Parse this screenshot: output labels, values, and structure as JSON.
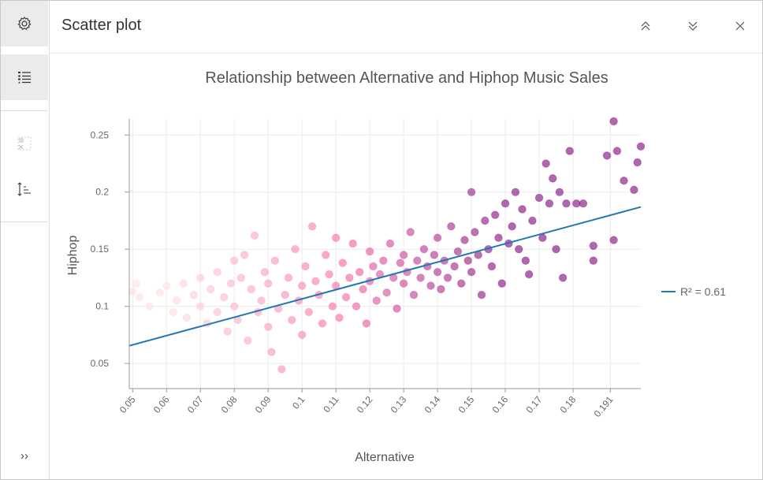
{
  "panel": {
    "title": "Scatter plot"
  },
  "sidebar": {
    "items": [
      {
        "icon": "gear-icon",
        "label": "Settings"
      },
      {
        "icon": "legend-list-icon",
        "label": "Legend"
      },
      {
        "icon": "selection-icon",
        "label": "Selection"
      },
      {
        "icon": "sort-icon",
        "label": "Sort"
      },
      {
        "icon": "expand-icon",
        "label": "Expand"
      }
    ]
  },
  "header": {
    "buttons": [
      "chevrons-up-icon",
      "chevrons-down-icon",
      "close-icon"
    ]
  },
  "chart_data": {
    "type": "scatter",
    "title": "Relationship between Alternative and Hiphop Music Sales",
    "xlabel": "Alternative",
    "ylabel": "Hiphop",
    "xlim": [
      0.049,
      0.2
    ],
    "ylim": [
      0.028,
      0.264
    ],
    "xticks": [
      0.05,
      0.06,
      0.07,
      0.08,
      0.09,
      0.1,
      0.11,
      0.12,
      0.13,
      0.14,
      0.15,
      0.16,
      0.17,
      0.18,
      0.191
    ],
    "xtick_labels": [
      "0.05",
      "0.06",
      "0.07",
      "0.08",
      "0.09",
      "0.1",
      "0.11",
      "0.12",
      "0.13",
      "0.14",
      "0.15",
      "0.16",
      "0.17",
      "0.18",
      "0.191"
    ],
    "yticks": [
      0.05,
      0.1,
      0.15,
      0.2,
      0.25
    ],
    "ytick_labels": [
      "0.05",
      "0.1",
      "0.15",
      "0.2",
      "0.25"
    ],
    "grid": true,
    "color_ramp": [
      "#fde0dd",
      "#f768a1",
      "#7a0177"
    ],
    "trendline": {
      "x": [
        0.049,
        0.2
      ],
      "y": [
        0.0655,
        0.187
      ],
      "color": "#1f77b4",
      "legend": "R² = 0.61"
    },
    "legend_placement": "right",
    "points": [
      [
        0.05,
        0.113
      ],
      [
        0.051,
        0.12
      ],
      [
        0.052,
        0.108
      ],
      [
        0.055,
        0.1
      ],
      [
        0.058,
        0.112
      ],
      [
        0.06,
        0.118
      ],
      [
        0.062,
        0.095
      ],
      [
        0.063,
        0.105
      ],
      [
        0.065,
        0.12
      ],
      [
        0.066,
        0.09
      ],
      [
        0.068,
        0.11
      ],
      [
        0.07,
        0.125
      ],
      [
        0.07,
        0.1
      ],
      [
        0.072,
        0.085
      ],
      [
        0.073,
        0.115
      ],
      [
        0.075,
        0.13
      ],
      [
        0.075,
        0.095
      ],
      [
        0.077,
        0.108
      ],
      [
        0.078,
        0.078
      ],
      [
        0.079,
        0.12
      ],
      [
        0.08,
        0.14
      ],
      [
        0.08,
        0.1
      ],
      [
        0.081,
        0.088
      ],
      [
        0.082,
        0.125
      ],
      [
        0.083,
        0.145
      ],
      [
        0.084,
        0.07
      ],
      [
        0.085,
        0.115
      ],
      [
        0.086,
        0.162
      ],
      [
        0.087,
        0.095
      ],
      [
        0.088,
        0.105
      ],
      [
        0.089,
        0.13
      ],
      [
        0.09,
        0.082
      ],
      [
        0.09,
        0.12
      ],
      [
        0.091,
        0.06
      ],
      [
        0.092,
        0.14
      ],
      [
        0.093,
        0.098
      ],
      [
        0.094,
        0.045
      ],
      [
        0.095,
        0.11
      ],
      [
        0.096,
        0.125
      ],
      [
        0.097,
        0.088
      ],
      [
        0.098,
        0.15
      ],
      [
        0.099,
        0.105
      ],
      [
        0.1,
        0.118
      ],
      [
        0.1,
        0.075
      ],
      [
        0.101,
        0.135
      ],
      [
        0.102,
        0.095
      ],
      [
        0.103,
        0.17
      ],
      [
        0.104,
        0.122
      ],
      [
        0.105,
        0.11
      ],
      [
        0.106,
        0.085
      ],
      [
        0.107,
        0.145
      ],
      [
        0.108,
        0.128
      ],
      [
        0.109,
        0.1
      ],
      [
        0.11,
        0.16
      ],
      [
        0.11,
        0.118
      ],
      [
        0.111,
        0.09
      ],
      [
        0.112,
        0.138
      ],
      [
        0.113,
        0.108
      ],
      [
        0.114,
        0.125
      ],
      [
        0.115,
        0.155
      ],
      [
        0.116,
        0.1
      ],
      [
        0.117,
        0.13
      ],
      [
        0.118,
        0.115
      ],
      [
        0.119,
        0.085
      ],
      [
        0.12,
        0.148
      ],
      [
        0.12,
        0.122
      ],
      [
        0.121,
        0.135
      ],
      [
        0.122,
        0.105
      ],
      [
        0.123,
        0.128
      ],
      [
        0.124,
        0.14
      ],
      [
        0.125,
        0.112
      ],
      [
        0.126,
        0.155
      ],
      [
        0.127,
        0.125
      ],
      [
        0.128,
        0.098
      ],
      [
        0.129,
        0.138
      ],
      [
        0.13,
        0.145
      ],
      [
        0.13,
        0.12
      ],
      [
        0.131,
        0.13
      ],
      [
        0.132,
        0.165
      ],
      [
        0.133,
        0.11
      ],
      [
        0.134,
        0.14
      ],
      [
        0.135,
        0.125
      ],
      [
        0.136,
        0.15
      ],
      [
        0.137,
        0.135
      ],
      [
        0.138,
        0.118
      ],
      [
        0.139,
        0.145
      ],
      [
        0.14,
        0.13
      ],
      [
        0.14,
        0.16
      ],
      [
        0.141,
        0.115
      ],
      [
        0.142,
        0.14
      ],
      [
        0.143,
        0.125
      ],
      [
        0.144,
        0.17
      ],
      [
        0.145,
        0.135
      ],
      [
        0.146,
        0.148
      ],
      [
        0.147,
        0.12
      ],
      [
        0.148,
        0.158
      ],
      [
        0.149,
        0.14
      ],
      [
        0.15,
        0.2
      ],
      [
        0.15,
        0.13
      ],
      [
        0.151,
        0.165
      ],
      [
        0.152,
        0.145
      ],
      [
        0.153,
        0.11
      ],
      [
        0.154,
        0.175
      ],
      [
        0.155,
        0.15
      ],
      [
        0.156,
        0.135
      ],
      [
        0.157,
        0.18
      ],
      [
        0.158,
        0.16
      ],
      [
        0.159,
        0.12
      ],
      [
        0.16,
        0.19
      ],
      [
        0.161,
        0.155
      ],
      [
        0.162,
        0.17
      ],
      [
        0.163,
        0.2
      ],
      [
        0.164,
        0.15
      ],
      [
        0.165,
        0.185
      ],
      [
        0.166,
        0.14
      ],
      [
        0.167,
        0.128
      ],
      [
        0.168,
        0.175
      ],
      [
        0.17,
        0.195
      ],
      [
        0.171,
        0.16
      ],
      [
        0.172,
        0.225
      ],
      [
        0.173,
        0.19
      ],
      [
        0.174,
        0.212
      ],
      [
        0.175,
        0.15
      ],
      [
        0.176,
        0.2
      ],
      [
        0.177,
        0.125
      ],
      [
        0.178,
        0.19
      ],
      [
        0.179,
        0.236
      ],
      [
        0.181,
        0.19
      ],
      [
        0.183,
        0.19
      ],
      [
        0.186,
        0.14
      ],
      [
        0.186,
        0.153
      ],
      [
        0.19,
        0.232
      ],
      [
        0.192,
        0.262
      ],
      [
        0.192,
        0.158
      ],
      [
        0.193,
        0.236
      ],
      [
        0.195,
        0.21
      ],
      [
        0.198,
        0.202
      ],
      [
        0.199,
        0.226
      ],
      [
        0.2,
        0.24
      ]
    ]
  }
}
